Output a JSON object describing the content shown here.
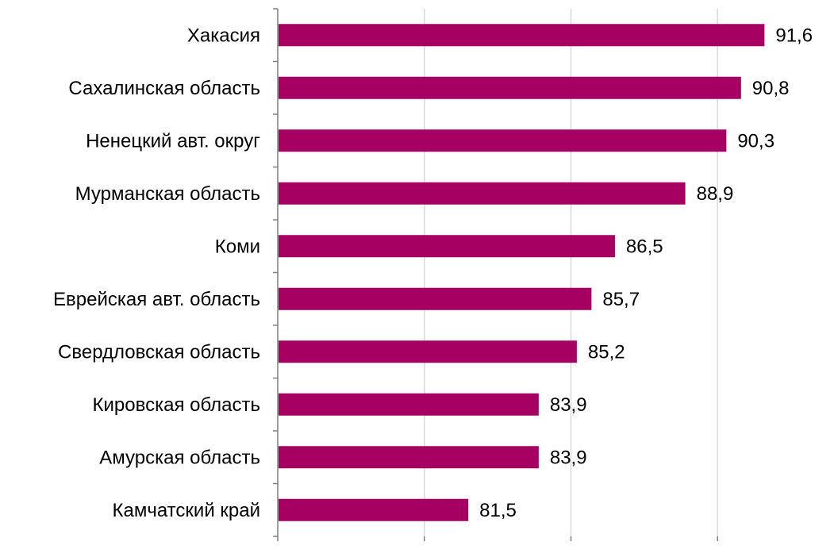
{
  "chart_data": {
    "type": "bar",
    "orientation": "horizontal",
    "categories": [
      "Хакасия",
      "Сахалинская область",
      "Ненецкий авт. округ",
      "Мурманская область",
      "Коми",
      "Еврейская авт. область",
      "Свердловская область",
      "Кировская область",
      "Амурская область",
      "Камчатский край"
    ],
    "values": [
      91.6,
      90.8,
      90.3,
      88.9,
      86.5,
      85.7,
      85.2,
      83.9,
      83.9,
      81.5
    ],
    "value_labels": [
      "91,6",
      "90,8",
      "90,3",
      "88,9",
      "86,5",
      "85,7",
      "85,2",
      "83,9",
      "83,9",
      "81,5"
    ],
    "xlim": [
      75,
      95
    ],
    "grid": true,
    "gridline_values": [
      80,
      85,
      90
    ],
    "tick_labels_shown": false,
    "title": "",
    "xlabel": "",
    "ylabel": "",
    "legend": "none",
    "bar_color": "#a50062"
  }
}
